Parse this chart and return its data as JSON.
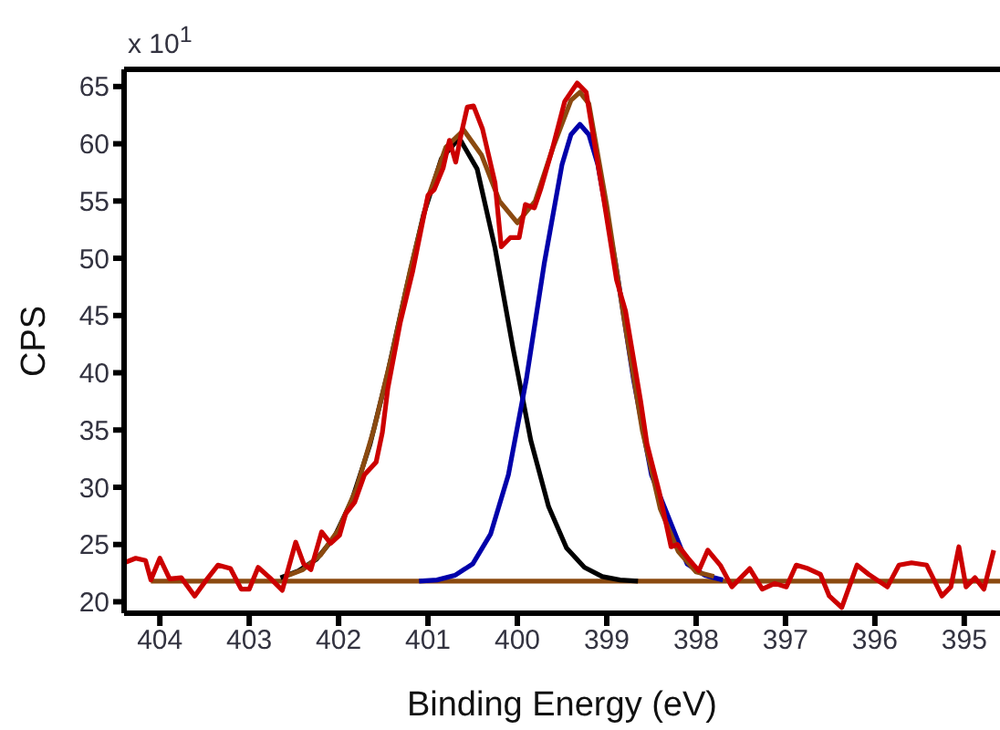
{
  "chart_data": {
    "type": "line",
    "xlabel": "Binding Energy (eV)",
    "ylabel": "CPS",
    "annotations": [
      "x 10$^{1}$"
    ],
    "xlim": [
      404.4,
      394.6
    ],
    "xticks": [
      404,
      403,
      402,
      401,
      400,
      399,
      398,
      397,
      396,
      395
    ],
    "ylim": [
      19,
      66.5
    ],
    "yticks": [
      20,
      25,
      30,
      35,
      40,
      45,
      50,
      55,
      60,
      65
    ],
    "grid": false,
    "legend": false,
    "marker": "none",
    "line_style": "solid",
    "series": [
      {
        "color": "#8b4a10",
        "x": [
          404.1,
          394.6
        ],
        "values": [
          21.8,
          21.8
        ]
      },
      {
        "color": "#000000",
        "x": [
          402.65,
          402.45,
          402.25,
          402.05,
          401.85,
          401.65,
          401.45,
          401.25,
          401.05,
          400.85,
          400.65,
          400.45,
          400.25,
          400.05,
          399.85,
          399.65,
          399.45,
          399.25,
          399.05,
          398.85,
          398.65
        ],
        "values": [
          22.1,
          22.7,
          23.7,
          25.6,
          28.9,
          33.7,
          40.0,
          47.1,
          53.8,
          58.7,
          60.5,
          57.8,
          50.9,
          42.2,
          34.1,
          28.3,
          24.7,
          23.0,
          22.2,
          21.9,
          21.8
        ]
      },
      {
        "color": "#0000aa",
        "x": [
          401.1,
          400.9,
          400.7,
          400.5,
          400.3,
          400.1,
          399.9,
          399.7,
          399.5,
          399.4,
          399.3,
          399.2,
          399.1,
          398.9,
          398.7,
          398.5,
          398.1,
          397.9,
          397.7
        ],
        "values": [
          21.8,
          21.9,
          22.3,
          23.3,
          25.9,
          31.1,
          39.4,
          49.5,
          58.2,
          60.8,
          61.7,
          60.8,
          58.2,
          49.5,
          39.4,
          31.1,
          23.3,
          22.3,
          21.9
        ]
      },
      {
        "color": "#8b4a10",
        "x": [
          402.6,
          402.4,
          402.2,
          402.0,
          401.8,
          401.6,
          401.4,
          401.2,
          401.0,
          400.8,
          400.6,
          400.4,
          400.2,
          400.0,
          399.8,
          399.6,
          399.4,
          399.3,
          399.2,
          399.0,
          398.8,
          398.6,
          398.4,
          398.2,
          398.0,
          397.8
        ],
        "values": [
          22.2,
          22.8,
          24.1,
          26.3,
          29.9,
          35.2,
          41.7,
          48.9,
          55.3,
          59.7,
          61.2,
          59.0,
          55.0,
          53.1,
          55.0,
          59.7,
          63.8,
          64.5,
          63.5,
          54.6,
          44.4,
          34.9,
          28.1,
          24.4,
          22.6,
          22.2
        ]
      },
      {
        "color": "#cc0000",
        "x": [
          404.4,
          404.27,
          404.16,
          404.1,
          404.0,
          403.89,
          403.76,
          403.61,
          403.48,
          403.35,
          403.21,
          403.09,
          403.0,
          402.9,
          402.77,
          402.63,
          402.48,
          402.39,
          402.31,
          402.19,
          402.09,
          401.99,
          401.92,
          401.82,
          401.71,
          401.58,
          401.51,
          401.45,
          401.31,
          401.17,
          401.0,
          400.93,
          400.83,
          400.76,
          400.69,
          400.63,
          400.56,
          400.49,
          400.39,
          400.25,
          400.18,
          400.08,
          399.98,
          399.91,
          399.81,
          399.74,
          399.61,
          399.47,
          399.33,
          399.23,
          399.13,
          399.03,
          398.89,
          398.79,
          398.62,
          398.55,
          398.41,
          398.28,
          398.21,
          398.08,
          397.97,
          397.87,
          397.73,
          397.6,
          397.4,
          397.26,
          397.12,
          396.99,
          396.88,
          396.75,
          396.61,
          396.51,
          396.37,
          396.2,
          396.07,
          395.86,
          395.73,
          395.59,
          395.42,
          395.25,
          395.15,
          395.06,
          394.98,
          394.88,
          394.78,
          394.67
        ],
        "values": [
          23.4,
          23.8,
          23.6,
          21.9,
          23.8,
          22.0,
          22.1,
          20.5,
          21.9,
          23.2,
          22.9,
          21.1,
          21.1,
          23.0,
          22.1,
          21.0,
          25.2,
          23.3,
          22.8,
          26.1,
          25.1,
          25.8,
          27.7,
          28.7,
          31.1,
          32.2,
          34.8,
          38.6,
          44.4,
          48.9,
          55.5,
          56.0,
          57.9,
          60.3,
          58.4,
          60.8,
          63.2,
          63.3,
          61.3,
          56.6,
          51.0,
          51.8,
          51.8,
          54.7,
          54.4,
          56.0,
          59.5,
          63.7,
          65.3,
          64.5,
          59.7,
          55.0,
          48.1,
          45.4,
          37.5,
          33.8,
          29.5,
          24.8,
          25.0,
          23.7,
          22.7,
          24.5,
          23.2,
          21.3,
          22.9,
          21.1,
          21.6,
          21.3,
          23.2,
          22.9,
          22.4,
          20.5,
          19.5,
          23.2,
          22.4,
          21.3,
          23.2,
          23.4,
          23.2,
          20.5,
          21.3,
          24.8,
          21.3,
          22.1,
          21.1,
          24.5
        ]
      }
    ]
  }
}
